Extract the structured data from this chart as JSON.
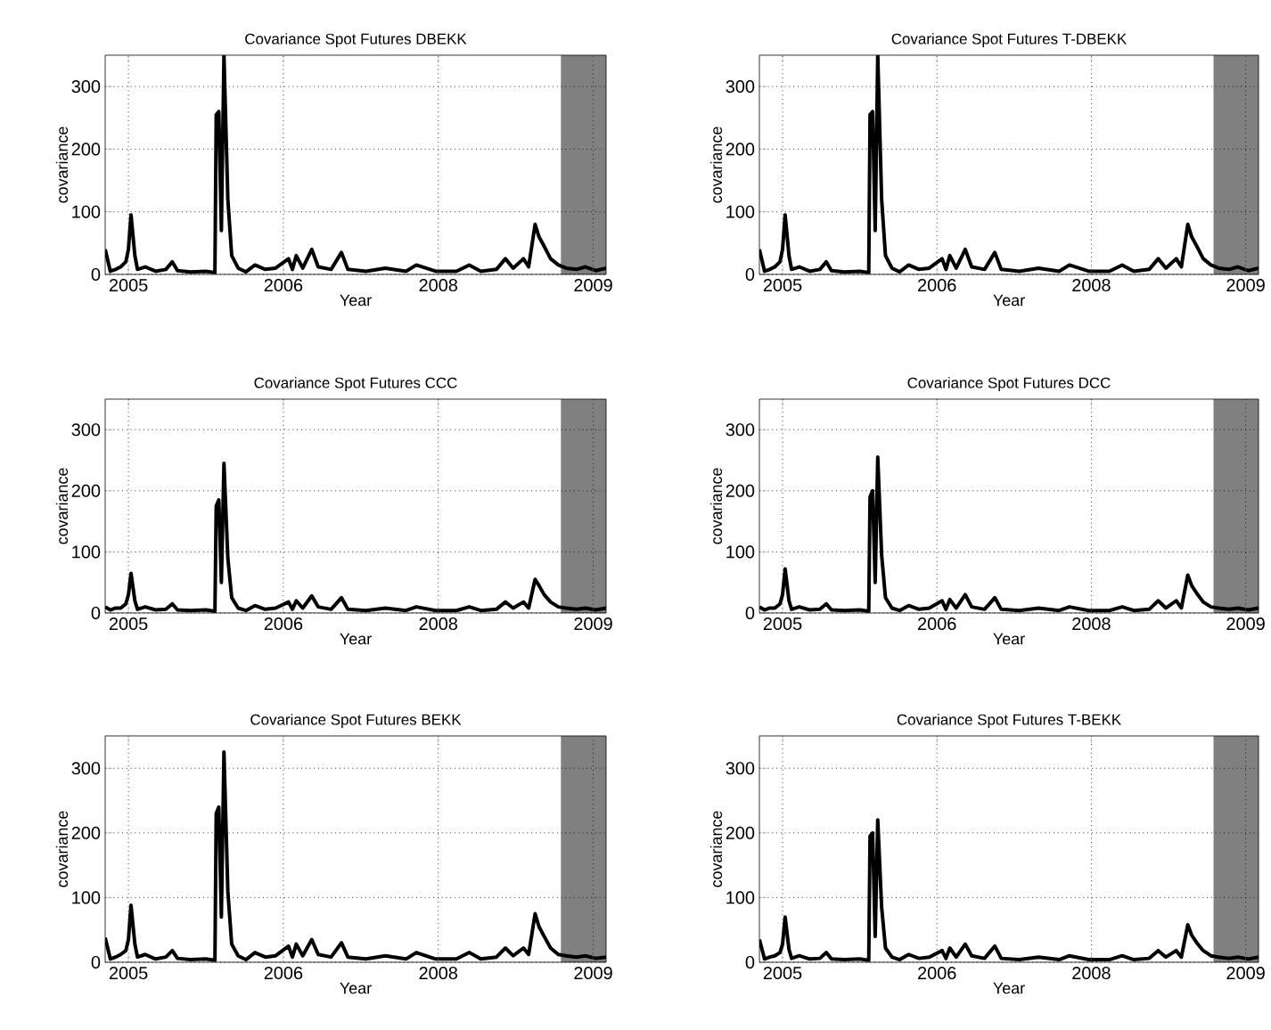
{
  "chart_data": [
    {
      "type": "line",
      "title": "Covariance Spot Futures DBEKK",
      "xlabel": "Year",
      "ylabel": "covariance",
      "grid": true,
      "color": "#000000",
      "xlim": [
        2005.02,
        2008.9
      ],
      "ylim": [
        0,
        350
      ],
      "xticks": [
        {
          "value": 2005.2,
          "label": "2005"
        },
        {
          "value": 2006.4,
          "label": "2006"
        },
        {
          "value": 2007.6,
          "label": "2008"
        },
        {
          "value": 2008.8,
          "label": "2009"
        }
      ],
      "yticks": [
        0,
        100,
        200,
        300
      ],
      "bands": [
        {
          "axis": "x",
          "from": 2008.55,
          "to": 2008.9,
          "color": "#808080"
        }
      ],
      "x": [
        2005.02,
        2005.06,
        2005.1,
        2005.14,
        2005.18,
        2005.2,
        2005.22,
        2005.25,
        2005.27,
        2005.33,
        2005.41,
        2005.49,
        2005.54,
        2005.58,
        2005.68,
        2005.8,
        2005.87,
        2005.88,
        2005.9,
        2005.92,
        2005.94,
        2005.97,
        2006.0,
        2006.05,
        2006.11,
        2006.18,
        2006.26,
        2006.34,
        2006.44,
        2006.47,
        2006.5,
        2006.55,
        2006.62,
        2006.67,
        2006.77,
        2006.85,
        2006.9,
        2007.04,
        2007.19,
        2007.35,
        2007.43,
        2007.58,
        2007.74,
        2007.84,
        2007.93,
        2008.05,
        2008.12,
        2008.18,
        2008.26,
        2008.3,
        2008.35,
        2008.38,
        2008.42,
        2008.47,
        2008.53,
        2008.59,
        2008.67,
        2008.74,
        2008.82,
        2008.9
      ],
      "values": [
        40,
        5,
        8,
        12,
        20,
        40,
        95,
        30,
        8,
        12,
        5,
        8,
        20,
        6,
        4,
        5,
        3,
        255,
        260,
        70,
        350,
        120,
        30,
        10,
        4,
        15,
        8,
        10,
        25,
        8,
        30,
        10,
        40,
        12,
        8,
        35,
        8,
        5,
        10,
        5,
        15,
        5,
        5,
        15,
        5,
        8,
        25,
        10,
        25,
        12,
        80,
        60,
        45,
        25,
        15,
        10,
        8,
        12,
        6,
        10
      ]
    },
    {
      "type": "line",
      "title": "Covariance Spot Futures T-DBEKK",
      "xlabel": "Year",
      "ylabel": "covariance",
      "grid": true,
      "color": "#000000",
      "xlim": [
        2005.02,
        2008.9
      ],
      "ylim": [
        0,
        350
      ],
      "xticks": [
        {
          "value": 2005.2,
          "label": "2005"
        },
        {
          "value": 2006.4,
          "label": "2006"
        },
        {
          "value": 2007.6,
          "label": "2008"
        },
        {
          "value": 2008.8,
          "label": "2009"
        }
      ],
      "yticks": [
        0,
        100,
        200,
        300
      ],
      "bands": [
        {
          "axis": "x",
          "from": 2008.55,
          "to": 2008.9,
          "color": "#808080"
        }
      ],
      "x": [
        2005.02,
        2005.06,
        2005.1,
        2005.14,
        2005.18,
        2005.2,
        2005.22,
        2005.25,
        2005.27,
        2005.33,
        2005.41,
        2005.49,
        2005.54,
        2005.58,
        2005.68,
        2005.8,
        2005.87,
        2005.88,
        2005.9,
        2005.92,
        2005.94,
        2005.97,
        2006.0,
        2006.05,
        2006.11,
        2006.18,
        2006.26,
        2006.34,
        2006.44,
        2006.47,
        2006.5,
        2006.55,
        2006.62,
        2006.67,
        2006.77,
        2006.85,
        2006.9,
        2007.04,
        2007.19,
        2007.35,
        2007.43,
        2007.58,
        2007.74,
        2007.84,
        2007.93,
        2008.05,
        2008.12,
        2008.18,
        2008.26,
        2008.3,
        2008.35,
        2008.38,
        2008.42,
        2008.47,
        2008.53,
        2008.59,
        2008.67,
        2008.74,
        2008.82,
        2008.9
      ],
      "values": [
        40,
        5,
        8,
        12,
        20,
        40,
        95,
        30,
        8,
        12,
        5,
        8,
        20,
        6,
        4,
        5,
        3,
        255,
        260,
        70,
        350,
        120,
        30,
        10,
        4,
        15,
        8,
        10,
        25,
        8,
        30,
        10,
        40,
        12,
        8,
        35,
        8,
        5,
        10,
        5,
        15,
        5,
        5,
        15,
        5,
        8,
        25,
        10,
        25,
        12,
        80,
        60,
        45,
        25,
        15,
        10,
        8,
        12,
        6,
        10
      ]
    },
    {
      "type": "line",
      "title": "Covariance Spot Futures CCC",
      "xlabel": "Year",
      "ylabel": "covariance",
      "grid": true,
      "color": "#000000",
      "xlim": [
        2005.02,
        2008.9
      ],
      "ylim": [
        0,
        350
      ],
      "xticks": [
        {
          "value": 2005.2,
          "label": "2005"
        },
        {
          "value": 2006.4,
          "label": "2006"
        },
        {
          "value": 2007.6,
          "label": "2008"
        },
        {
          "value": 2008.8,
          "label": "2009"
        }
      ],
      "yticks": [
        0,
        100,
        200,
        300
      ],
      "bands": [
        {
          "axis": "x",
          "from": 2008.55,
          "to": 2008.9,
          "color": "#808080"
        }
      ],
      "x": [
        2005.02,
        2005.06,
        2005.1,
        2005.14,
        2005.18,
        2005.2,
        2005.22,
        2005.25,
        2005.27,
        2005.33,
        2005.41,
        2005.49,
        2005.54,
        2005.58,
        2005.68,
        2005.8,
        2005.87,
        2005.88,
        2005.9,
        2005.92,
        2005.94,
        2005.97,
        2006.0,
        2006.05,
        2006.11,
        2006.18,
        2006.26,
        2006.34,
        2006.44,
        2006.47,
        2006.5,
        2006.55,
        2006.62,
        2006.67,
        2006.77,
        2006.85,
        2006.9,
        2007.04,
        2007.19,
        2007.35,
        2007.43,
        2007.58,
        2007.74,
        2007.84,
        2007.93,
        2008.05,
        2008.12,
        2008.18,
        2008.26,
        2008.3,
        2008.35,
        2008.38,
        2008.42,
        2008.47,
        2008.53,
        2008.59,
        2008.67,
        2008.74,
        2008.82,
        2008.9
      ],
      "values": [
        10,
        5,
        8,
        8,
        15,
        30,
        65,
        20,
        6,
        10,
        5,
        6,
        15,
        5,
        4,
        5,
        3,
        175,
        185,
        50,
        245,
        90,
        25,
        8,
        4,
        12,
        6,
        8,
        18,
        6,
        20,
        8,
        28,
        10,
        6,
        25,
        6,
        4,
        8,
        4,
        10,
        4,
        4,
        10,
        4,
        6,
        18,
        8,
        18,
        8,
        55,
        45,
        30,
        18,
        10,
        8,
        6,
        8,
        5,
        8
      ]
    },
    {
      "type": "line",
      "title": "Covariance Spot Futures DCC",
      "xlabel": "Year",
      "ylabel": "covariance",
      "grid": true,
      "color": "#000000",
      "xlim": [
        2005.02,
        2008.9
      ],
      "ylim": [
        0,
        350
      ],
      "xticks": [
        {
          "value": 2005.2,
          "label": "2005"
        },
        {
          "value": 2006.4,
          "label": "2006"
        },
        {
          "value": 2007.6,
          "label": "2008"
        },
        {
          "value": 2008.8,
          "label": "2009"
        }
      ],
      "yticks": [
        0,
        100,
        200,
        300
      ],
      "bands": [
        {
          "axis": "x",
          "from": 2008.55,
          "to": 2008.9,
          "color": "#808080"
        }
      ],
      "x": [
        2005.02,
        2005.06,
        2005.1,
        2005.14,
        2005.18,
        2005.2,
        2005.22,
        2005.25,
        2005.27,
        2005.33,
        2005.41,
        2005.49,
        2005.54,
        2005.58,
        2005.68,
        2005.8,
        2005.87,
        2005.88,
        2005.9,
        2005.92,
        2005.94,
        2005.97,
        2006.0,
        2006.05,
        2006.11,
        2006.18,
        2006.26,
        2006.34,
        2006.44,
        2006.47,
        2006.5,
        2006.55,
        2006.62,
        2006.67,
        2006.77,
        2006.85,
        2006.9,
        2007.04,
        2007.19,
        2007.35,
        2007.43,
        2007.58,
        2007.74,
        2007.84,
        2007.93,
        2008.05,
        2008.12,
        2008.18,
        2008.26,
        2008.3,
        2008.35,
        2008.38,
        2008.42,
        2008.47,
        2008.53,
        2008.59,
        2008.67,
        2008.74,
        2008.82,
        2008.9
      ],
      "values": [
        10,
        5,
        8,
        8,
        15,
        30,
        72,
        20,
        6,
        10,
        5,
        6,
        15,
        5,
        4,
        5,
        3,
        190,
        200,
        50,
        255,
        95,
        25,
        8,
        4,
        12,
        6,
        8,
        20,
        6,
        22,
        8,
        30,
        10,
        6,
        25,
        6,
        4,
        8,
        4,
        10,
        4,
        4,
        10,
        4,
        6,
        20,
        8,
        20,
        8,
        62,
        45,
        32,
        18,
        10,
        8,
        6,
        8,
        5,
        8
      ]
    },
    {
      "type": "line",
      "title": "Covariance Spot Futures BEKK",
      "xlabel": "Year",
      "ylabel": "covariance",
      "grid": true,
      "color": "#000000",
      "xlim": [
        2005.02,
        2008.9
      ],
      "ylim": [
        0,
        350
      ],
      "xticks": [
        {
          "value": 2005.2,
          "label": "2005"
        },
        {
          "value": 2006.4,
          "label": "2006"
        },
        {
          "value": 2007.6,
          "label": "2008"
        },
        {
          "value": 2008.8,
          "label": "2009"
        }
      ],
      "yticks": [
        0,
        100,
        200,
        300
      ],
      "bands": [
        {
          "axis": "x",
          "from": 2008.55,
          "to": 2008.9,
          "color": "#808080"
        }
      ],
      "x": [
        2005.02,
        2005.06,
        2005.1,
        2005.14,
        2005.18,
        2005.2,
        2005.22,
        2005.25,
        2005.27,
        2005.33,
        2005.41,
        2005.49,
        2005.54,
        2005.58,
        2005.68,
        2005.8,
        2005.87,
        2005.88,
        2005.9,
        2005.92,
        2005.94,
        2005.97,
        2006.0,
        2006.05,
        2006.11,
        2006.18,
        2006.26,
        2006.34,
        2006.44,
        2006.47,
        2006.5,
        2006.55,
        2006.62,
        2006.67,
        2006.77,
        2006.85,
        2006.9,
        2007.04,
        2007.19,
        2007.35,
        2007.43,
        2007.58,
        2007.74,
        2007.84,
        2007.93,
        2008.05,
        2008.12,
        2008.18,
        2008.26,
        2008.3,
        2008.35,
        2008.38,
        2008.42,
        2008.47,
        2008.53,
        2008.59,
        2008.67,
        2008.74,
        2008.82,
        2008.9
      ],
      "values": [
        38,
        5,
        8,
        12,
        18,
        35,
        88,
        28,
        8,
        12,
        5,
        8,
        18,
        6,
        4,
        5,
        3,
        230,
        240,
        70,
        325,
        110,
        28,
        10,
        4,
        15,
        8,
        10,
        25,
        8,
        28,
        10,
        35,
        12,
        8,
        30,
        8,
        5,
        10,
        5,
        15,
        5,
        5,
        15,
        5,
        8,
        22,
        10,
        22,
        12,
        75,
        55,
        40,
        22,
        12,
        10,
        8,
        10,
        6,
        8
      ]
    },
    {
      "type": "line",
      "title": "Covariance Spot Futures T-BEKK",
      "xlabel": "Year",
      "ylabel": "covariance",
      "grid": true,
      "color": "#000000",
      "xlim": [
        2005.02,
        2008.9
      ],
      "ylim": [
        0,
        350
      ],
      "xticks": [
        {
          "value": 2005.2,
          "label": "2005"
        },
        {
          "value": 2006.4,
          "label": "2006"
        },
        {
          "value": 2007.6,
          "label": "2008"
        },
        {
          "value": 2008.8,
          "label": "2009"
        }
      ],
      "yticks": [
        0,
        100,
        200,
        300
      ],
      "bands": [
        {
          "axis": "x",
          "from": 2008.55,
          "to": 2008.9,
          "color": "#808080"
        }
      ],
      "x": [
        2005.02,
        2005.06,
        2005.1,
        2005.14,
        2005.18,
        2005.2,
        2005.22,
        2005.25,
        2005.27,
        2005.33,
        2005.41,
        2005.49,
        2005.54,
        2005.58,
        2005.68,
        2005.8,
        2005.87,
        2005.88,
        2005.9,
        2005.92,
        2005.94,
        2005.97,
        2006.0,
        2006.05,
        2006.11,
        2006.18,
        2006.26,
        2006.34,
        2006.44,
        2006.47,
        2006.5,
        2006.55,
        2006.62,
        2006.67,
        2006.77,
        2006.85,
        2006.9,
        2007.04,
        2007.19,
        2007.35,
        2007.43,
        2007.58,
        2007.74,
        2007.84,
        2007.93,
        2008.05,
        2008.12,
        2008.18,
        2008.26,
        2008.3,
        2008.35,
        2008.38,
        2008.42,
        2008.47,
        2008.53,
        2008.59,
        2008.67,
        2008.74,
        2008.82,
        2008.9
      ],
      "values": [
        35,
        5,
        8,
        10,
        15,
        28,
        70,
        20,
        6,
        10,
        5,
        6,
        15,
        5,
        4,
        5,
        3,
        195,
        200,
        40,
        220,
        85,
        22,
        8,
        4,
        12,
        6,
        8,
        18,
        6,
        22,
        8,
        28,
        10,
        6,
        25,
        6,
        4,
        8,
        4,
        10,
        4,
        4,
        10,
        4,
        6,
        18,
        8,
        18,
        8,
        58,
        42,
        30,
        18,
        10,
        8,
        6,
        8,
        5,
        8
      ]
    }
  ]
}
